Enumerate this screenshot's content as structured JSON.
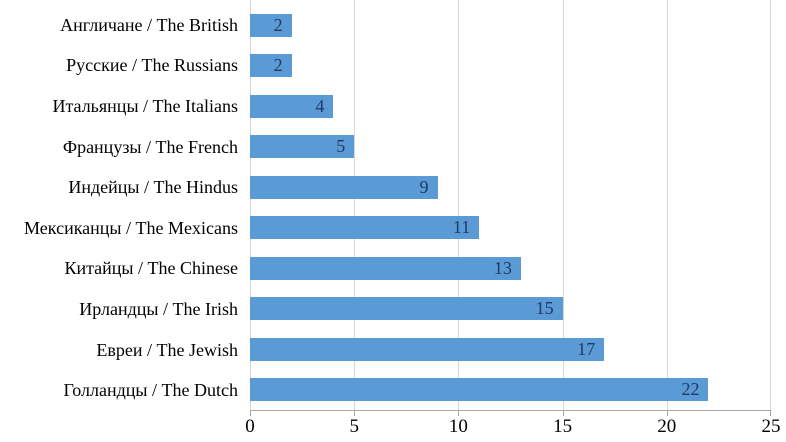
{
  "chart_data": {
    "type": "bar",
    "orientation": "horizontal",
    "title": "",
    "xlabel": "",
    "ylabel": "",
    "categories": [
      "Англичане / The British",
      "Русские / The Russians",
      "Итальянцы / The Italians",
      "Французы / The French",
      "Индейцы / The Hindus",
      "Мексиканцы / The Mexicans",
      "Китайцы / The Chinese",
      "Ирландцы / The Irish",
      "Евреи / The Jewish",
      "Голландцы / The Dutch"
    ],
    "values": [
      2,
      2,
      4,
      5,
      9,
      11,
      13,
      15,
      17,
      22
    ],
    "value_labels_shown": true,
    "x_ticks": [
      0,
      5,
      10,
      15,
      20,
      25
    ],
    "xlim": [
      0,
      25
    ],
    "grid": true,
    "legend": false,
    "colors": {
      "bar": "#5b9bd5",
      "value_label": "#1f3864",
      "category_label": "#000000",
      "tick_label": "#000000",
      "gridline": "#d5d5d5",
      "axis_line": "#a6a6a6"
    }
  }
}
